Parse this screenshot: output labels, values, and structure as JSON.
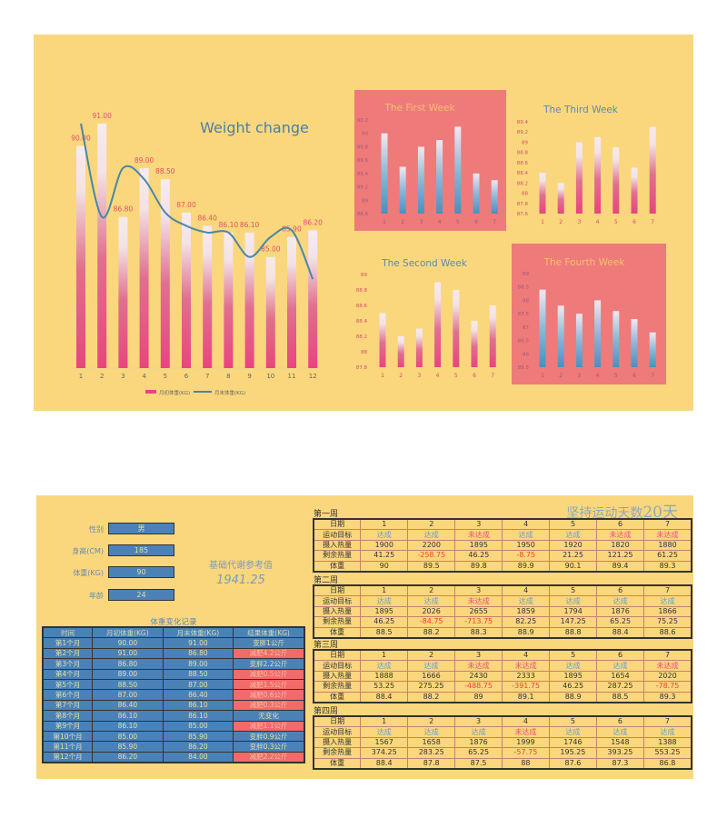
{
  "main_chart": {
    "title": "Weight change",
    "categories": [
      "1",
      "2",
      "3",
      "4",
      "5",
      "6",
      "7",
      "8",
      "9",
      "10",
      "11",
      "12"
    ],
    "bar_labels": [
      "90.00",
      "91.00",
      "86.80",
      "89.00",
      "88.50",
      "87.00",
      "86.40",
      "86.10",
      "86.10",
      "85.00",
      "85.90",
      "86.20"
    ],
    "legend": {
      "bar": "月初体重(KG)",
      "line": "月末体重(KG)"
    }
  },
  "chart_data": [
    {
      "type": "bar+line",
      "title": "Weight change",
      "categories": [
        "1",
        "2",
        "3",
        "4",
        "5",
        "6",
        "7",
        "8",
        "9",
        "10",
        "11",
        "12"
      ],
      "series": [
        {
          "name": "月初体重(KG)",
          "type": "bar",
          "values": [
            90,
            91,
            86.8,
            89,
            88.5,
            87,
            86.4,
            86.1,
            86.1,
            85,
            85.9,
            86.2
          ]
        },
        {
          "name": "月末体重(KG)",
          "type": "line",
          "values": [
            91,
            86.8,
            89,
            88.5,
            87,
            86.4,
            86.1,
            86.1,
            85,
            85.9,
            86.2,
            84
          ]
        }
      ],
      "ylim": [
        80,
        92
      ],
      "legend": "bottom",
      "colors": {
        "bar": "#e8457f",
        "line": "#4a86a8"
      }
    },
    {
      "type": "bar",
      "title": "The First Week",
      "categories": [
        "1",
        "2",
        "3",
        "4",
        "5",
        "6",
        "7"
      ],
      "values": [
        90,
        89.5,
        89.8,
        89.9,
        90.1,
        89.4,
        89.3
      ],
      "ylim": [
        88.8,
        90.2
      ],
      "yticks": [
        "90.2",
        "90",
        "89.8",
        "89.6",
        "89.4",
        "89.2",
        "89",
        "88.8"
      ],
      "style": "blue",
      "boxed": true
    },
    {
      "type": "bar",
      "title": "The Third Week",
      "categories": [
        "1",
        "2",
        "3",
        "4",
        "5",
        "6",
        "7"
      ],
      "values": [
        88.4,
        88.2,
        89,
        89.1,
        88.9,
        88.5,
        89.3
      ],
      "ylim": [
        87.6,
        89.4
      ],
      "yticks": [
        "89.4",
        "89.2",
        "89",
        "88.8",
        "88.6",
        "88.4",
        "88.2",
        "88",
        "87.8",
        "87.6"
      ],
      "style": "pink",
      "boxed": false
    },
    {
      "type": "bar",
      "title": "The Second Week",
      "categories": [
        "1",
        "2",
        "3",
        "4",
        "5",
        "6",
        "7"
      ],
      "values": [
        88.5,
        88.2,
        88.3,
        88.9,
        88.8,
        88.4,
        88.6
      ],
      "ylim": [
        87.8,
        89
      ],
      "yticks": [
        "89",
        "88.8",
        "88.6",
        "88.4",
        "88.2",
        "88",
        "87.8"
      ],
      "style": "pink",
      "boxed": false
    },
    {
      "type": "bar",
      "title": "The Fourth Week",
      "categories": [
        "1",
        "2",
        "3",
        "4",
        "5",
        "6",
        "7"
      ],
      "values": [
        88.4,
        87.8,
        87.5,
        88,
        87.6,
        87.3,
        86.8
      ],
      "ylim": [
        85.5,
        89
      ],
      "yticks": [
        "89",
        "88.5",
        "88",
        "87.5",
        "87",
        "86.5",
        "86",
        "85.5"
      ],
      "style": "blue",
      "boxed": true
    }
  ],
  "profile": {
    "fields": [
      {
        "label": "性别",
        "value": "男"
      },
      {
        "label": "身高(CM)",
        "value": "185"
      },
      {
        "label": "体重(KG)",
        "value": "90"
      },
      {
        "label": "年龄",
        "value": "24"
      }
    ],
    "bmr_label": "基础代谢参考值",
    "bmr_value": "1941.25"
  },
  "record": {
    "title": "体重变化记录",
    "headers": [
      "时间",
      "月初体重(KG)",
      "月末体重(KG)",
      "结果体重(KG)"
    ],
    "rows": [
      [
        "第1个月",
        "90.00",
        "91.00",
        "变胖1公斤",
        false
      ],
      [
        "第2个月",
        "91.00",
        "86.80",
        "减肥4.2公斤",
        true
      ],
      [
        "第3个月",
        "86.80",
        "89.00",
        "变胖2.2公斤",
        false
      ],
      [
        "第4个月",
        "89.00",
        "88.50",
        "减肥0.5公斤",
        true
      ],
      [
        "第5个月",
        "88.50",
        "87.00",
        "减肥1.5公斤",
        true
      ],
      [
        "第6个月",
        "87.00",
        "86.40",
        "减肥0.6公斤",
        true
      ],
      [
        "第7个月",
        "86.40",
        "86.10",
        "减肥0.3公斤",
        true
      ],
      [
        "第8个月",
        "86.10",
        "86.10",
        "无变化",
        false
      ],
      [
        "第9个月",
        "86.10",
        "85.00",
        "减肥1.1公斤",
        true
      ],
      [
        "第10个月",
        "85.00",
        "85.90",
        "变胖0.9公斤",
        false
      ],
      [
        "第11个月",
        "85.90",
        "86.20",
        "变胖0.3公斤",
        false
      ],
      [
        "第12个月",
        "86.20",
        "84.00",
        "减肥2.2公斤",
        true
      ]
    ]
  },
  "streak": {
    "label": "坚持运动天数",
    "value": "20天"
  },
  "row_labels": [
    "日期",
    "运动目标",
    "摄入热量",
    "剩余热量",
    "体重"
  ],
  "weeks": [
    {
      "name": "第一周",
      "days": [
        "1",
        "2",
        "3",
        "4",
        "5",
        "6",
        "7"
      ],
      "goal": [
        "达成",
        "达成",
        "未达成",
        "达成",
        "达成",
        "未达成",
        "未达成"
      ],
      "intake": [
        "1900",
        "2200",
        "1895",
        "1950",
        "1920",
        "1820",
        "1880"
      ],
      "surplus": [
        "41.25",
        "-258.75",
        "46.25",
        "-8.75",
        "21.25",
        "121.25",
        "61.25"
      ],
      "weight": [
        "90",
        "89.5",
        "89.8",
        "89.9",
        "90.1",
        "89.4",
        "89.3"
      ]
    },
    {
      "name": "第二周",
      "days": [
        "1",
        "2",
        "3",
        "4",
        "5",
        "6",
        "7"
      ],
      "goal": [
        "达成",
        "达成",
        "未达成",
        "达成",
        "达成",
        "达成",
        "达成"
      ],
      "intake": [
        "1895",
        "2026",
        "2655",
        "1859",
        "1794",
        "1876",
        "1866"
      ],
      "surplus": [
        "46.25",
        "-84.75",
        "-713.75",
        "82.25",
        "147.25",
        "65.25",
        "75.25"
      ],
      "weight": [
        "88.5",
        "88.2",
        "88.3",
        "88.9",
        "88.8",
        "88.4",
        "88.6"
      ]
    },
    {
      "name": "第三周",
      "days": [
        "1",
        "2",
        "3",
        "4",
        "5",
        "6",
        "7"
      ],
      "goal": [
        "达成",
        "达成",
        "未达成",
        "未达成",
        "达成",
        "达成",
        "未达成"
      ],
      "intake": [
        "1888",
        "1666",
        "2430",
        "2333",
        "1895",
        "1654",
        "2020"
      ],
      "surplus": [
        "53.25",
        "275.25",
        "-488.75",
        "-391.75",
        "46.25",
        "287.25",
        "-78.75"
      ],
      "weight": [
        "88.4",
        "88.2",
        "89",
        "89.1",
        "88.9",
        "88.5",
        "89.3"
      ]
    },
    {
      "name": "第四周",
      "days": [
        "1",
        "2",
        "3",
        "4",
        "5",
        "6",
        "7"
      ],
      "goal": [
        "达成",
        "达成",
        "达成",
        "未达成",
        "达成",
        "达成",
        "达成"
      ],
      "intake": [
        "1567",
        "1658",
        "1876",
        "1999",
        "1746",
        "1548",
        "1388"
      ],
      "surplus": [
        "374.25",
        "283.25",
        "65.25",
        "-57.75",
        "195.25",
        "393.25",
        "553.25"
      ],
      "weight": [
        "88.4",
        "87.8",
        "87.5",
        "88",
        "87.6",
        "87.3",
        "86.8"
      ]
    }
  ]
}
